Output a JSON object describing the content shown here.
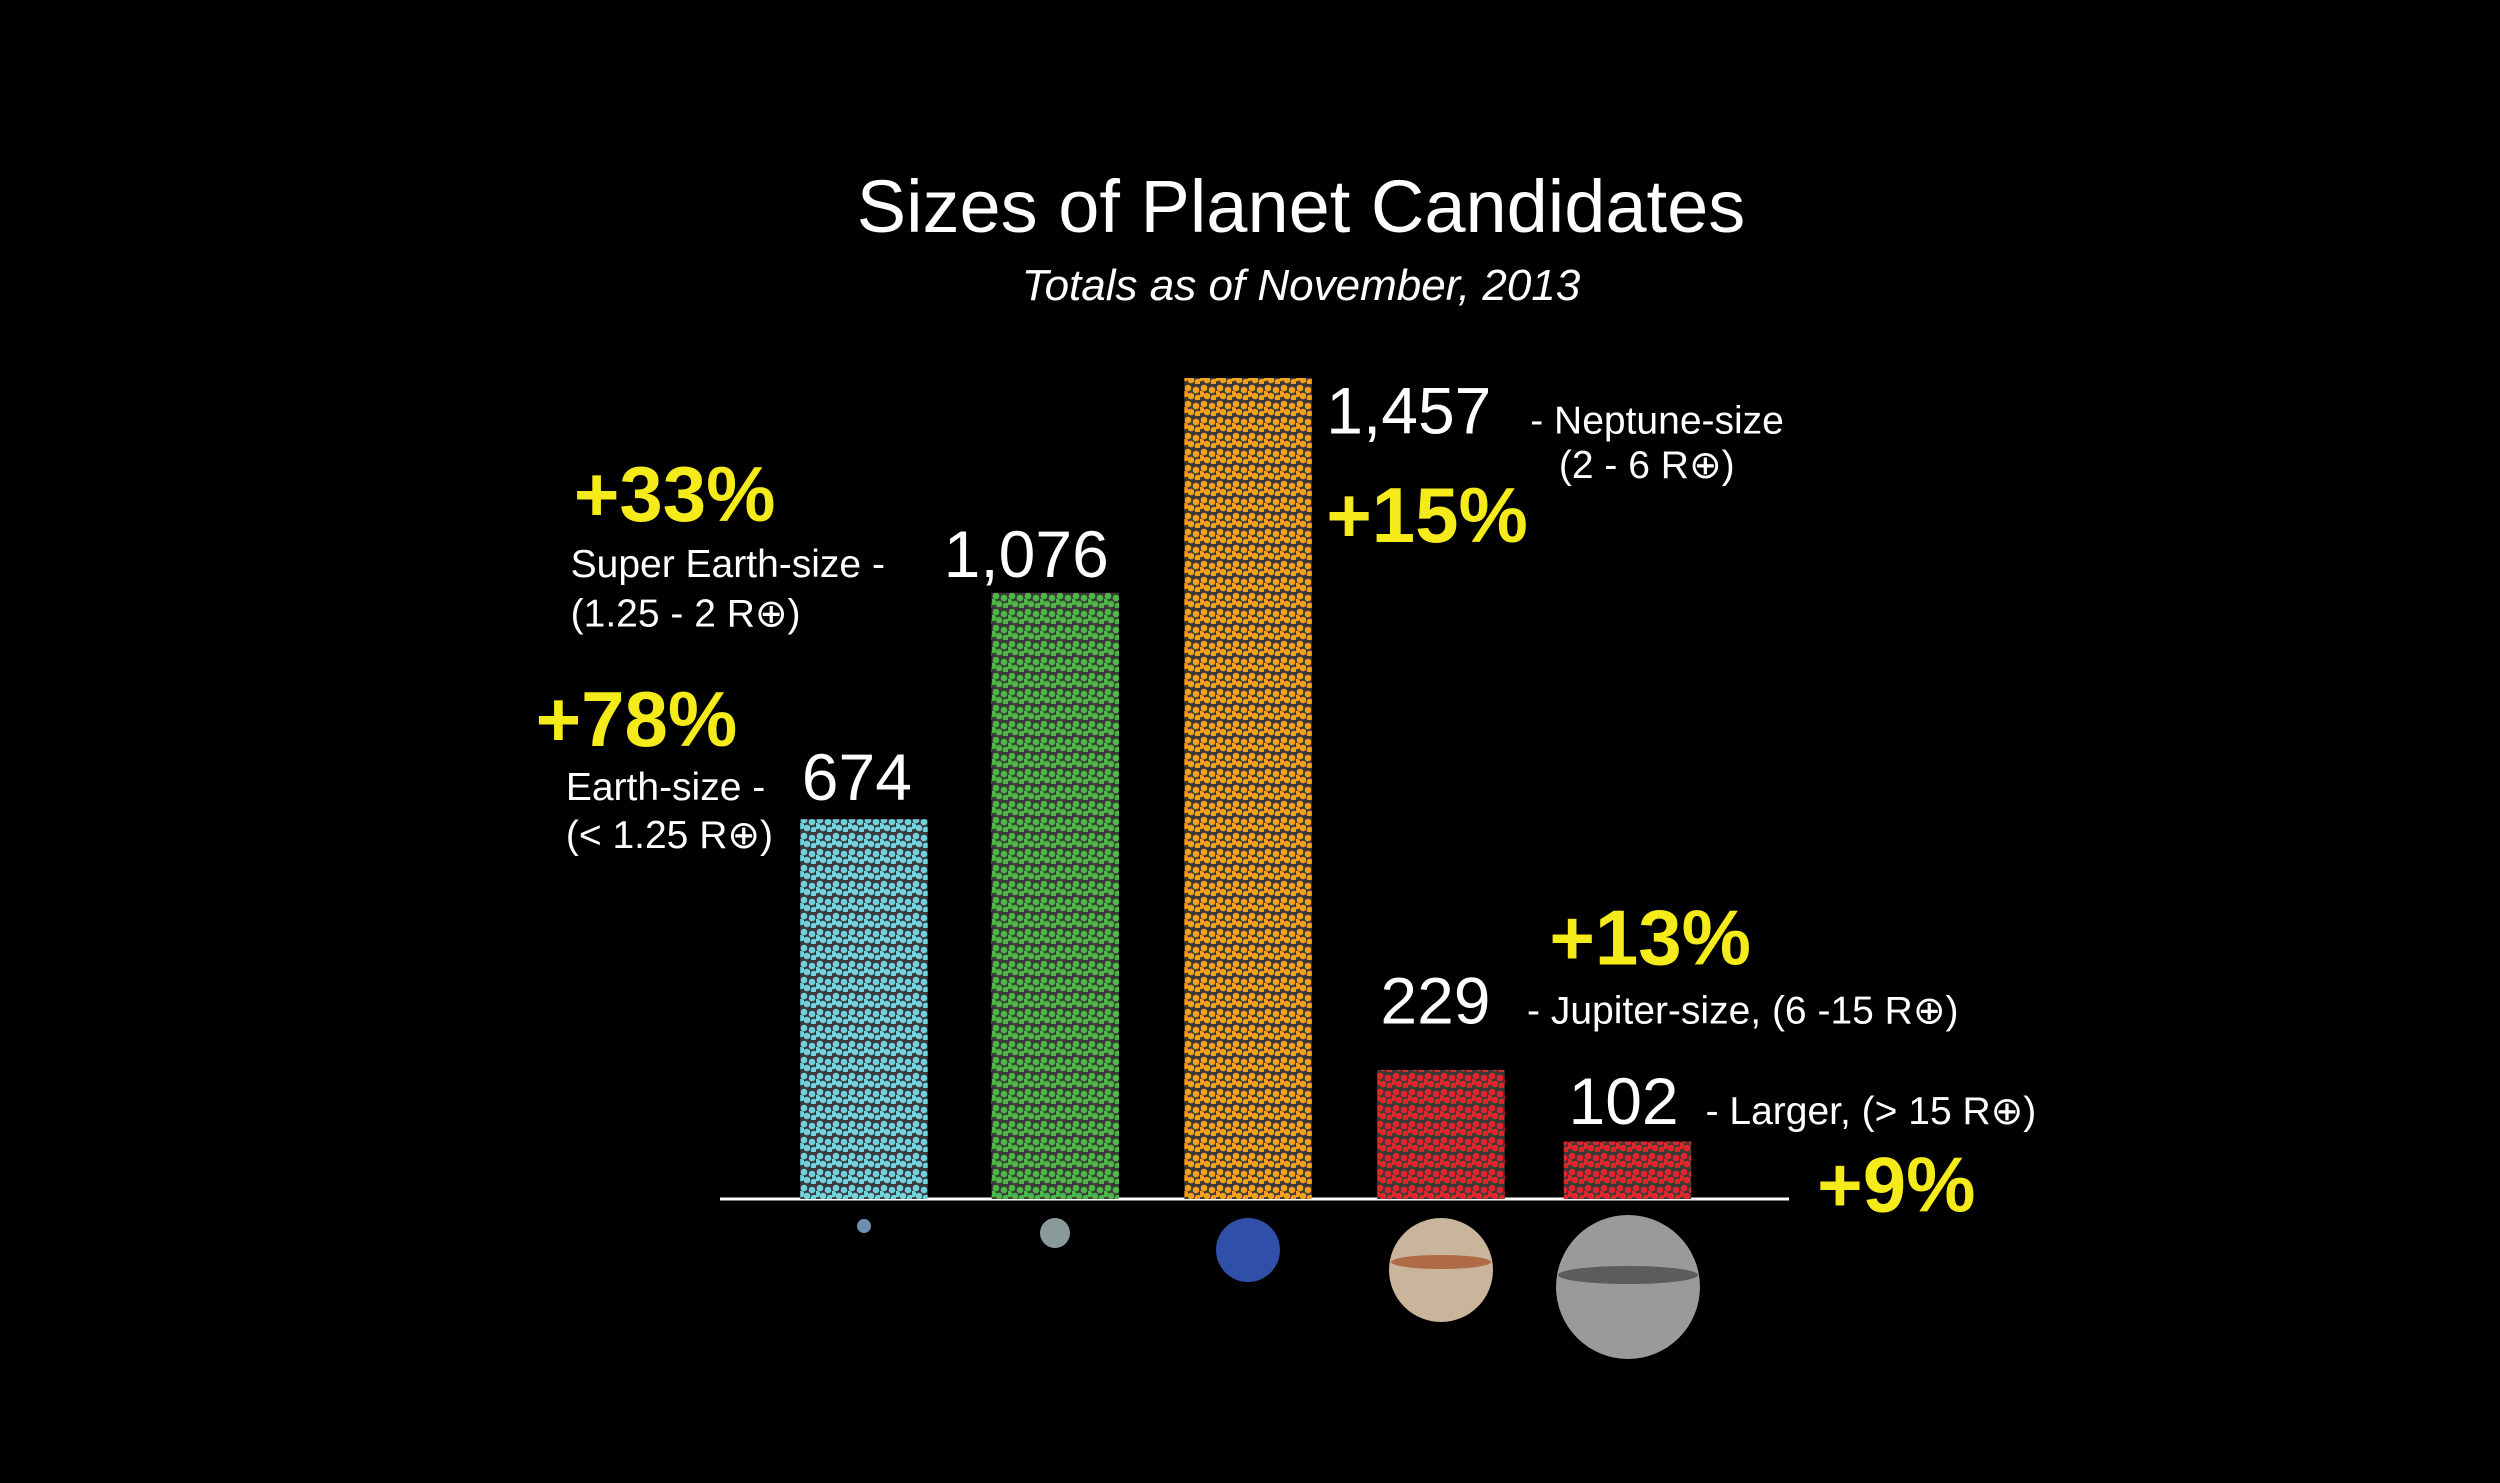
{
  "chart_data": {
    "type": "bar",
    "title": "Sizes of Planet Candidates",
    "subtitle": "Totals as of November, 2013",
    "categories": [
      "Earth-size -",
      "Super Earth-size -",
      "- Neptune-size",
      "- Jupiter-size, (6 -15 R⊕)",
      "- Larger, (> 15 R⊕)"
    ],
    "sublabels": [
      "(< 1.25 R⊕)",
      "(1.25 - 2 R⊕)",
      "(2 - 6 R⊕)",
      null,
      null
    ],
    "values": [
      674,
      1076,
      1457,
      229,
      102
    ],
    "value_labels": [
      "674",
      "1,076",
      "1,457",
      "229",
      "102"
    ],
    "growth": [
      78,
      33,
      15,
      13,
      9
    ],
    "growth_labels": [
      "+78%",
      "+33%",
      "+15%",
      "+13%",
      "+9%"
    ],
    "colors": [
      "#72d3df",
      "#4db848",
      "#f7a11a",
      "#e3262a",
      "#e3262a"
    ],
    "ylim": [
      0,
      1500
    ]
  }
}
